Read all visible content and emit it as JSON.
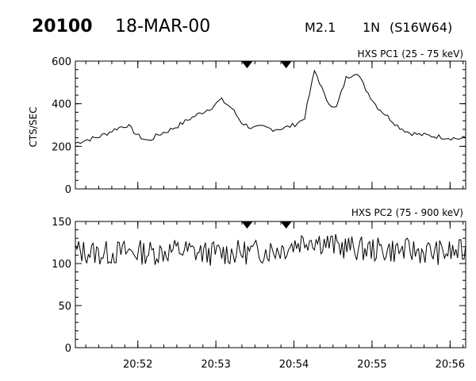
{
  "header": {
    "event_id": "20100",
    "date": "18-MAR-00",
    "goes_class": "M2.1",
    "importance": "1N",
    "location": "(S16W64)"
  },
  "chart_data": [
    {
      "type": "line",
      "title": "HXS PC1 (25 - 75 keV)",
      "ylabel": "CTS/SEC",
      "xlabel": "",
      "xlim": [
        "20:51:12",
        "20:56:12"
      ],
      "ylim": [
        0,
        600
      ],
      "yticks": [
        0,
        200,
        400,
        600
      ],
      "xticks": [
        "20:52",
        "20:53",
        "20:54",
        "20:55",
        "20:56"
      ],
      "markers": [
        "20:53:24",
        "20:53:54"
      ],
      "x_unit": "seconds since 20:51:12",
      "x": [
        0,
        8,
        16,
        24,
        32,
        40,
        48,
        56,
        64,
        72,
        80,
        88,
        96,
        104,
        112,
        120,
        128,
        136,
        144,
        152,
        160,
        168,
        176,
        184,
        192,
        200,
        208,
        216,
        224,
        232,
        240,
        248,
        256,
        264,
        272,
        280,
        288,
        296,
        300
      ],
      "values": [
        215,
        230,
        240,
        260,
        285,
        300,
        250,
        225,
        255,
        275,
        300,
        330,
        355,
        380,
        420,
        380,
        310,
        285,
        290,
        280,
        285,
        300,
        330,
        560,
        430,
        370,
        520,
        550,
        460,
        385,
        340,
        295,
        265,
        255,
        250,
        245,
        240,
        235,
        240
      ]
    },
    {
      "type": "line",
      "title": "HXS PC2 (75 - 900 keV)",
      "ylabel": "",
      "xlabel": "",
      "xlim": [
        "20:51:12",
        "20:56:12"
      ],
      "ylim": [
        0,
        150
      ],
      "yticks": [
        0,
        50,
        100,
        150
      ],
      "xticks": [
        "20:52",
        "20:53",
        "20:54",
        "20:55",
        "20:56"
      ],
      "markers": [
        "20:53:24",
        "20:53:54"
      ],
      "x_unit": "seconds since 20:51:12",
      "x": [
        0,
        20,
        40,
        60,
        80,
        100,
        120,
        140,
        160,
        180,
        200,
        220,
        240,
        260,
        280,
        300
      ],
      "values": [
        115,
        112,
        114,
        113,
        116,
        112,
        113,
        114,
        118,
        130,
        121,
        117,
        116,
        115,
        113,
        114
      ]
    }
  ]
}
